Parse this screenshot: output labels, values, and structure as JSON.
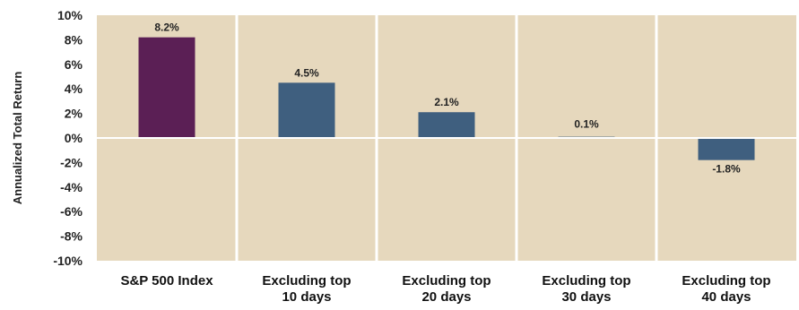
{
  "chart_data": {
    "type": "bar",
    "ylabel": "Annualized Total Return",
    "ylim": [
      -10,
      10
    ],
    "yticks": [
      10,
      8,
      6,
      4,
      2,
      0,
      -2,
      -4,
      -6,
      -8,
      -10
    ],
    "ytick_labels": [
      "10%",
      "8%",
      "6%",
      "4%",
      "2%",
      "0%",
      "-2%",
      "-4%",
      "-6%",
      "-8%",
      "-10%"
    ],
    "categories": [
      [
        "S&P 500 Index"
      ],
      [
        "Excluding top",
        "10 days"
      ],
      [
        "Excluding top",
        "20 days"
      ],
      [
        "Excluding top",
        "30 days"
      ],
      [
        "Excluding top",
        "40 days"
      ]
    ],
    "values": [
      8.2,
      4.5,
      2.1,
      0.1,
      -1.8
    ],
    "data_labels": [
      "8.2%",
      "4.5%",
      "2.1%",
      "0.1%",
      "-1.8%"
    ],
    "bar_colors": [
      "#5b1f55",
      "#3f5f7f",
      "#3f5f7f",
      "#3f5f7f",
      "#3f5f7f"
    ],
    "background_color": "#e6d8bd",
    "divider_color": "#ffffff",
    "grid": false,
    "legend": "none"
  }
}
